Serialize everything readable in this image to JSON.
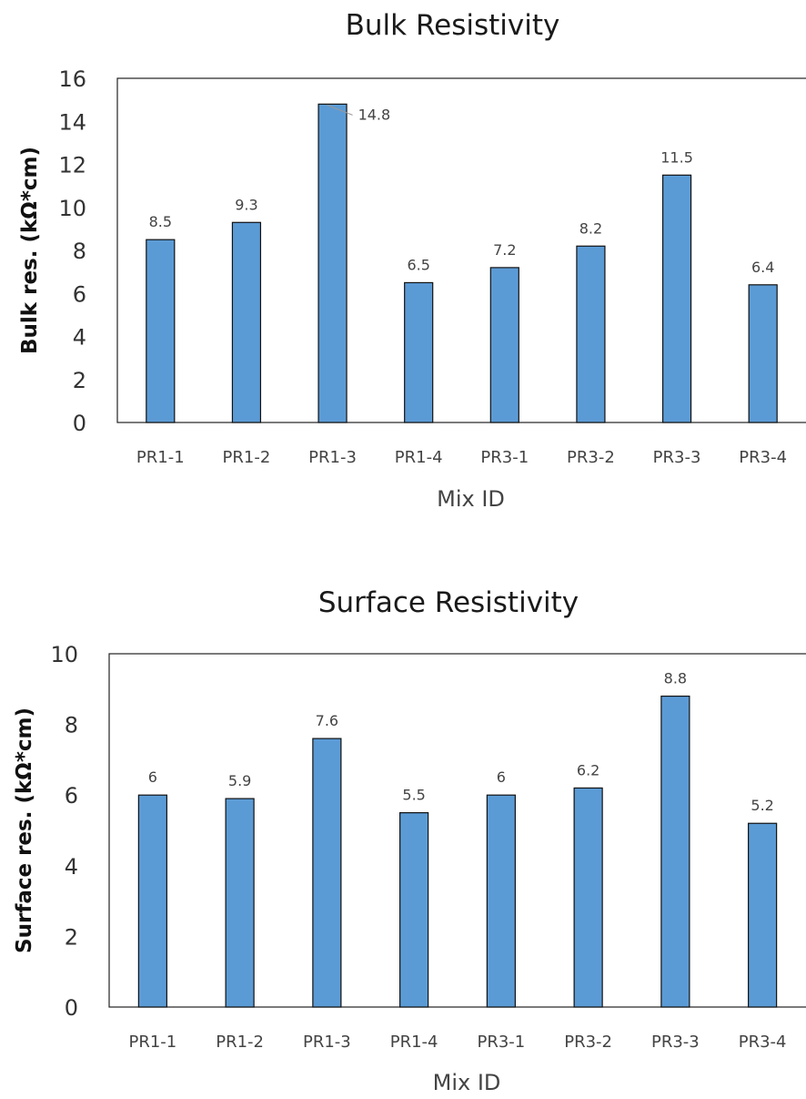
{
  "chart_data": [
    {
      "type": "bar",
      "title": "Bulk Resistivity",
      "xlabel": "Mix ID",
      "ylabel": "Bulk res. (kΩ*cm)",
      "categories": [
        "PR1-1",
        "PR1-2",
        "PR1-3",
        "PR1-4",
        "PR3-1",
        "PR3-2",
        "PR3-3",
        "PR3-4"
      ],
      "values": [
        8.5,
        9.3,
        14.8,
        6.5,
        7.2,
        8.2,
        11.5,
        6.4
      ],
      "data_labels": [
        "8.5",
        "9.3",
        "14.8",
        "6.5",
        "7.2",
        "8.2",
        "11.5",
        "6.4"
      ],
      "ylim": [
        0,
        16
      ],
      "yticks": [
        "0",
        "2",
        "4",
        "6",
        "8",
        "10",
        "12",
        "14",
        "16"
      ],
      "grid": false,
      "legend": "none",
      "bar_color": "#5b9bd5"
    },
    {
      "type": "bar",
      "title": "Surface Resistivity",
      "xlabel": "Mix ID",
      "ylabel": "Surface res. (kΩ*cm)",
      "categories": [
        "PR1-1",
        "PR1-2",
        "PR1-3",
        "PR1-4",
        "PR3-1",
        "PR3-2",
        "PR3-3",
        "PR3-4"
      ],
      "values": [
        6,
        5.9,
        7.6,
        5.5,
        6,
        6.2,
        8.8,
        5.2
      ],
      "data_labels": [
        "6",
        "5.9",
        "7.6",
        "5.5",
        "6",
        "6.2",
        "8.8",
        "5.2"
      ],
      "ylim": [
        0,
        10
      ],
      "yticks": [
        "0",
        "2",
        "4",
        "6",
        "8",
        "10"
      ],
      "grid": false,
      "legend": "none",
      "bar_color": "#5b9bd5"
    }
  ]
}
